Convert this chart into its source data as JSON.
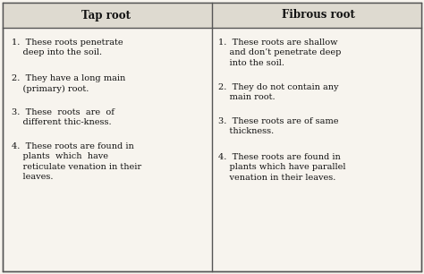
{
  "title_left": "Tap root",
  "title_right": "Fibrous root",
  "left_items": [
    "1.  These roots penetrate\n    deep into the soil.",
    "2.  They have a long main\n    (primary) root.",
    "3.  These  roots  are  of\n    different thic-kness.",
    "4.  These roots are found in\n    plants  which  have\n    reticulate venation in their\n    leaves."
  ],
  "right_items": [
    "1.  These roots are shallow\n    and don’t penetrate deep\n    into the soil.",
    "2.  They do not contain any\n    main root.",
    "3.  These roots are of same\n    thickness.",
    "4.  These roots are found in\n    plants which have parallel\n    venation in their leaves."
  ],
  "bg_color": "#f7f4ee",
  "header_bg": "#dedad0",
  "border_color": "#555555",
  "text_color": "#111111",
  "font_size": 7.0,
  "header_font_size": 8.5,
  "fig_width": 4.74,
  "fig_height": 3.06,
  "dpi": 100
}
